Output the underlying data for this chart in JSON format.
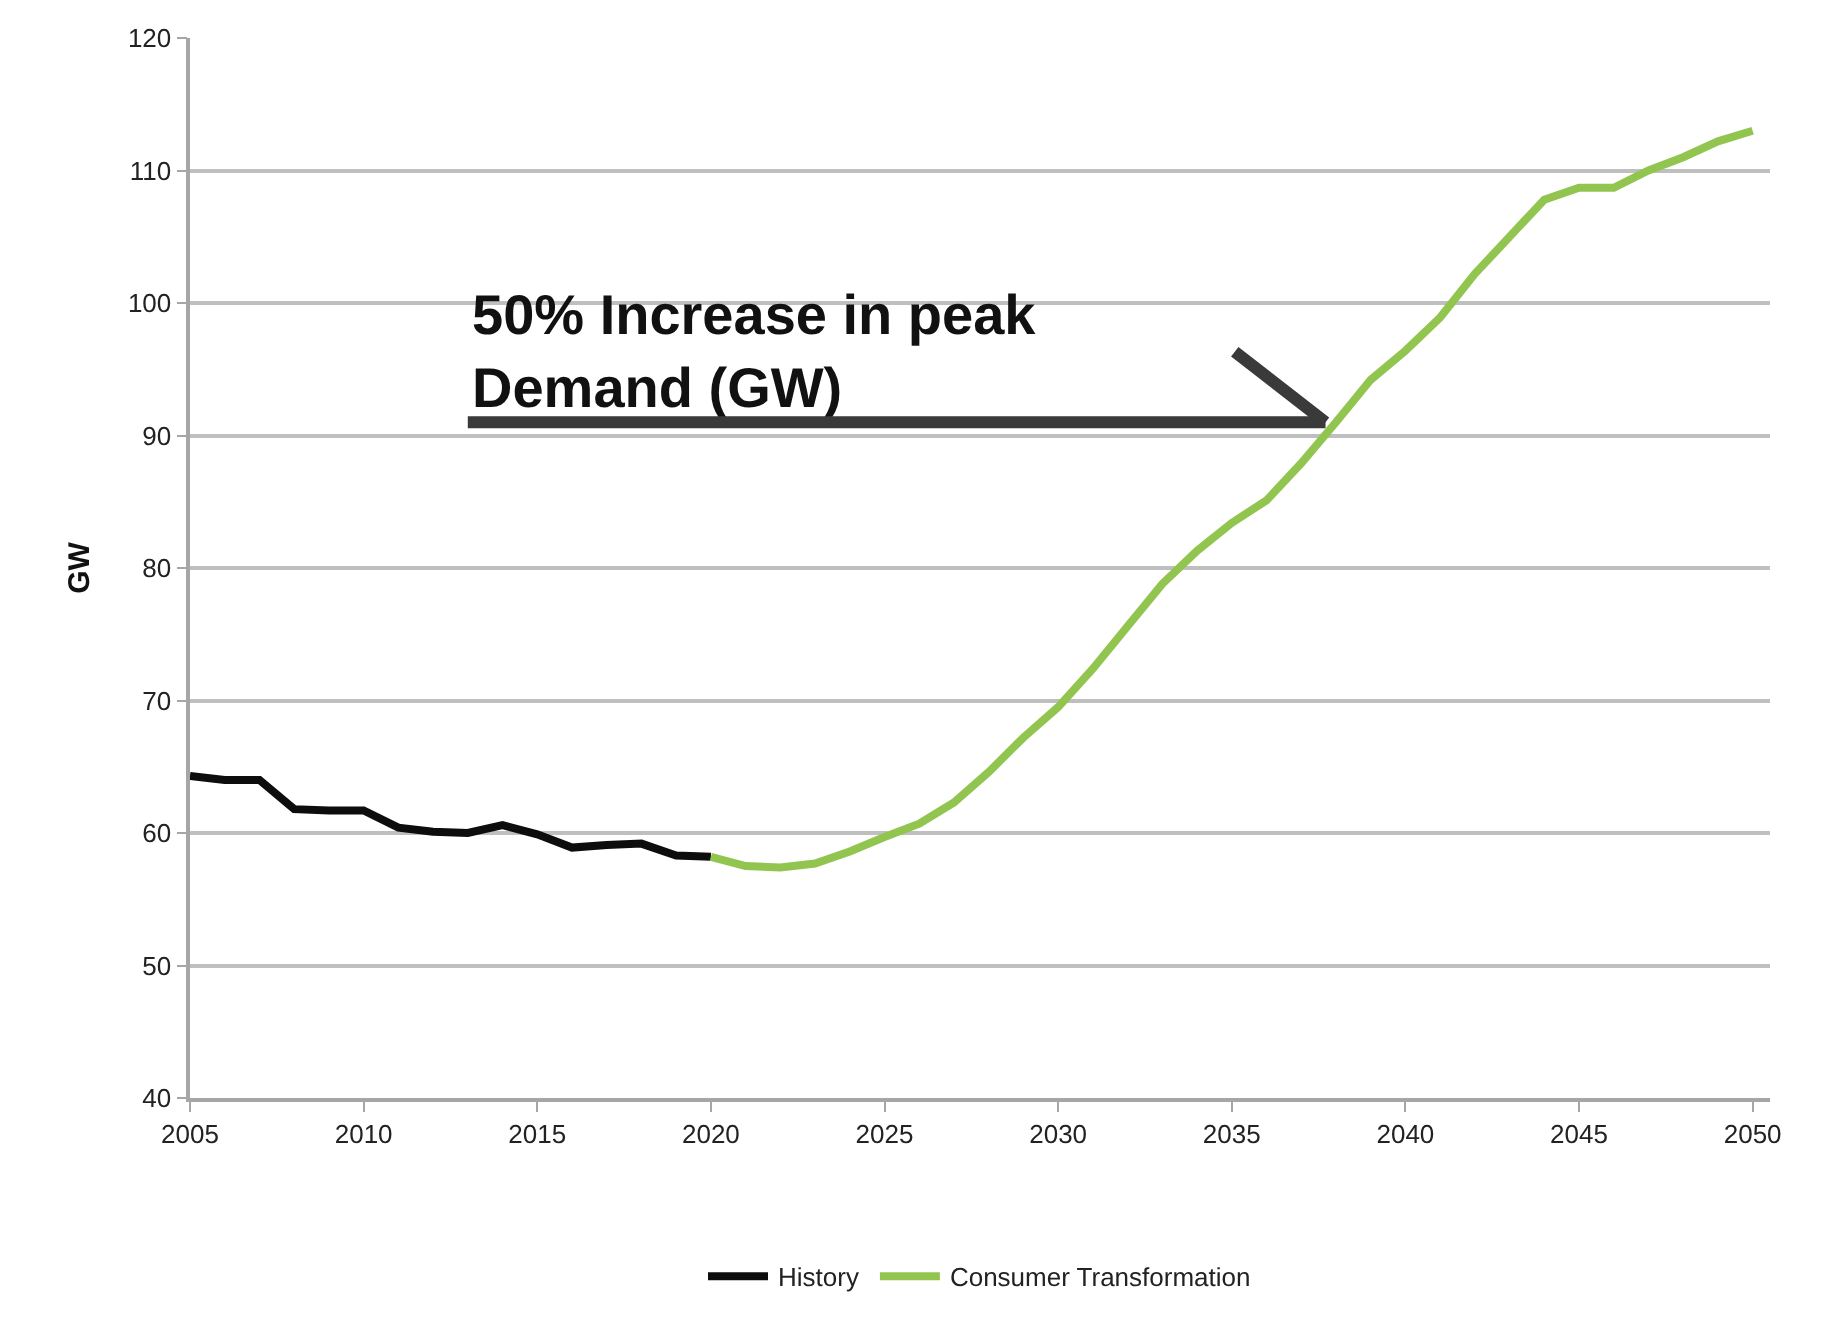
{
  "chart_data": {
    "type": "line",
    "ylabel": "GW",
    "xlim": [
      2005,
      2050.5
    ],
    "xticks": [
      2005,
      2010,
      2015,
      2020,
      2025,
      2030,
      2035,
      2040,
      2045,
      2050
    ],
    "ylim": [
      40,
      120
    ],
    "yticks": [
      40,
      50,
      60,
      70,
      80,
      90,
      100,
      110,
      120
    ],
    "grid": "y",
    "legend": "bottom",
    "marker": "none",
    "line_style": "solid",
    "annotations": [
      {
        "text": "50% Increase in peak Demand (GW)",
        "x": 2037.7,
        "y": 91
      }
    ],
    "series": [
      {
        "name": "History",
        "color": "#0d0d0d",
        "x": [
          2005,
          2006,
          2007,
          2008,
          2009,
          2010,
          2011,
          2012,
          2013,
          2014,
          2015,
          2016,
          2017,
          2018,
          2019,
          2020
        ],
        "values": [
          64.3,
          64.0,
          64.0,
          61.8,
          61.7,
          61.7,
          60.4,
          60.1,
          60.0,
          60.6,
          59.9,
          58.9,
          59.1,
          59.2,
          58.3,
          58.2
        ]
      },
      {
        "name": "Consumer Transformation",
        "color": "#92c550",
        "x": [
          2020,
          2021,
          2022,
          2023,
          2024,
          2025,
          2026,
          2027,
          2028,
          2029,
          2030,
          2031,
          2032,
          2033,
          2034,
          2035,
          2036,
          2037,
          2038,
          2039,
          2040,
          2041,
          2042,
          2043,
          2044,
          2045,
          2046,
          2047,
          2048,
          2049,
          2050
        ],
        "values": [
          58.2,
          57.5,
          57.4,
          57.7,
          58.6,
          59.7,
          60.7,
          62.3,
          64.6,
          67.2,
          69.5,
          72.4,
          75.6,
          78.8,
          81.3,
          83.4,
          85.1,
          87.9,
          91.0,
          94.2,
          96.4,
          98.9,
          102.2,
          105.0,
          107.8,
          108.7,
          108.7,
          110.0,
          111.0,
          112.2,
          113.0
        ]
      }
    ]
  }
}
